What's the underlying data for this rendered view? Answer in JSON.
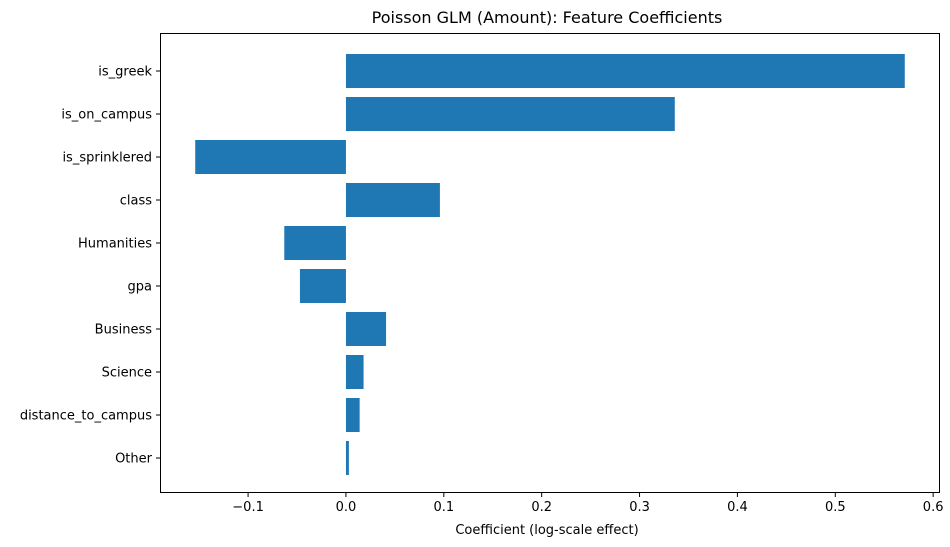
{
  "chart_data": {
    "type": "bar",
    "orientation": "horizontal",
    "title": "Poisson GLM (Amount): Feature Coefficients",
    "xlabel": "Coefficient (log-scale effect)",
    "ylabel": "",
    "categories": [
      "is_greek",
      "is_on_campus",
      "is_sprinklered",
      "class",
      "Humanities",
      "gpa",
      "Business",
      "Science",
      "distance_to_campus",
      "Other"
    ],
    "values": [
      0.571,
      0.336,
      -0.154,
      0.096,
      -0.063,
      -0.047,
      0.041,
      0.018,
      0.014,
      0.003
    ],
    "xlim": [
      -0.19,
      0.607
    ],
    "xticks": [
      -0.1,
      0.0,
      0.1,
      0.2,
      0.3,
      0.4,
      0.5,
      0.6
    ],
    "xtick_labels": [
      "−0.1",
      "0.0",
      "0.1",
      "0.2",
      "0.3",
      "0.4",
      "0.5",
      "0.6"
    ],
    "bar_color": "#1f77b4",
    "grid": false,
    "legend": "none"
  }
}
